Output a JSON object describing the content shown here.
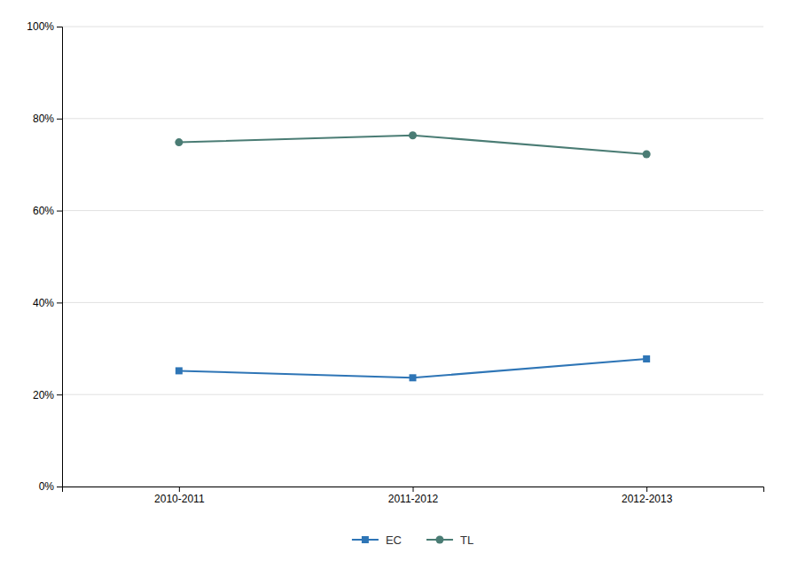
{
  "chart_data": {
    "type": "line",
    "categories": [
      "2010-2011",
      "2011-2012",
      "2012-2013"
    ],
    "series": [
      {
        "name": "EC",
        "color": "#2E75B6",
        "marker": "square",
        "values": [
          0.2516,
          0.2364,
          0.2774
        ]
      },
      {
        "name": "TL",
        "color": "#4A7C74",
        "marker": "circle",
        "values": [
          0.7484,
          0.7636,
          0.7226
        ]
      }
    ],
    "ylim": [
      0,
      1.0
    ],
    "yticks": [
      {
        "value": 0,
        "label": "0%"
      },
      {
        "value": 0.2,
        "label": "20%"
      },
      {
        "value": 0.4,
        "label": "40%"
      },
      {
        "value": 0.6,
        "label": "60%"
      },
      {
        "value": 0.8,
        "label": "80%"
      },
      {
        "value": 1.0,
        "label": "100%"
      }
    ],
    "grid": true,
    "legend": "bottom"
  }
}
